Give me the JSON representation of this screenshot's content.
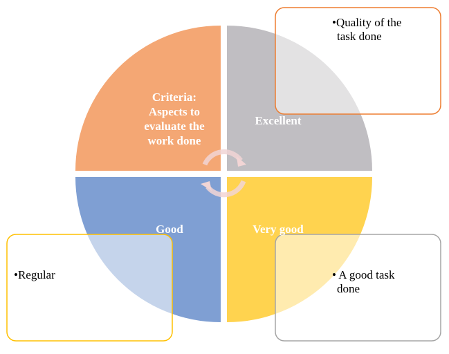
{
  "quadrants": [
    {
      "label_lines": [
        "Criteria:",
        "Aspects to",
        "evaluate the",
        "work done"
      ]
    },
    {
      "label_lines": [
        "Excellent"
      ]
    },
    {
      "label_lines": [
        "Good"
      ]
    },
    {
      "label_lines": [
        "Very good"
      ]
    }
  ],
  "boxes": [
    {
      "lines": [
        "•Quality of the",
        "task done"
      ]
    },
    {
      "lines": [
        "•Regular"
      ]
    },
    {
      "lines": [
        "• A good task",
        "done"
      ]
    }
  ]
}
